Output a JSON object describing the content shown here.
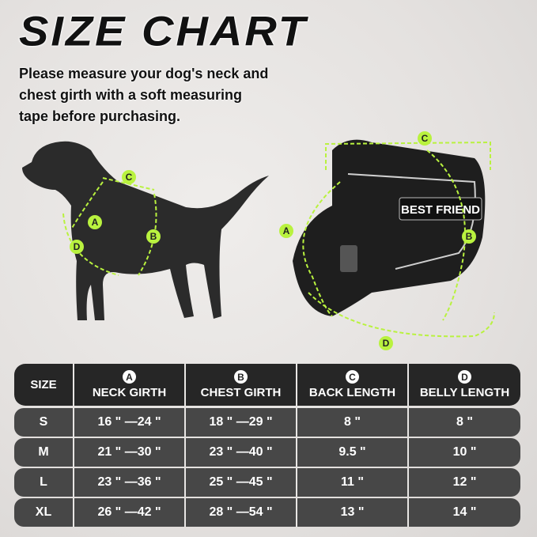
{
  "title": "SIZE CHART",
  "description": [
    "Please measure your dog's neck and",
    "chest girth with a soft measuring",
    "tape before purchasing."
  ],
  "labels": {
    "a": "A",
    "b": "B",
    "c": "C",
    "d": "D"
  },
  "harness_patch": "BEST FRIEND",
  "colors": {
    "accent": "#b9f23f",
    "header_bg": "#262626",
    "row_bg": "#474747"
  },
  "table": {
    "headers": [
      {
        "badge": "",
        "label": "SIZE"
      },
      {
        "badge": "A",
        "label": "NECK GIRTH"
      },
      {
        "badge": "B",
        "label": "CHEST GIRTH"
      },
      {
        "badge": "C",
        "label": "BACK LENGTH"
      },
      {
        "badge": "D",
        "label": "BELLY LENGTH"
      }
    ],
    "rows": [
      [
        "S",
        "16 \" —24 \"",
        "18 \" —29 \"",
        "8 \"",
        "8 \""
      ],
      [
        "M",
        "21 \" —30 \"",
        "23 \" —40 \"",
        "9.5 \"",
        "10 \""
      ],
      [
        "L",
        "23 \" —36 \"",
        "25 \" —45 \"",
        "11 \"",
        "12 \""
      ],
      [
        "XL",
        "26 \" —42 \"",
        "28 \" —54 \"",
        "13 \"",
        "14 \""
      ]
    ]
  }
}
